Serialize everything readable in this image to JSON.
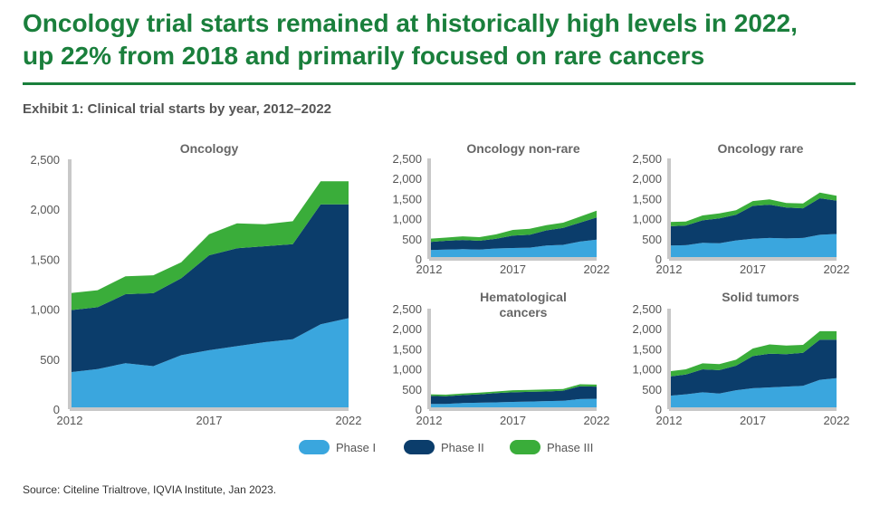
{
  "title_line1": "Oncology trial starts remained at historically high levels in 2022,",
  "title_line2": "up 22% from 2018 and primarily focused on rare cancers",
  "exhibit": "Exhibit 1: Clinical trial starts by year, 2012–2022",
  "source": "Source: Citeline Trialtrove, IQVIA Institute, Jan 2023.",
  "colors": {
    "phase1": "#3aa6de",
    "phase2": "#0b3d6b",
    "phase3": "#3aad3a",
    "title": "#1a7f3c"
  },
  "legend": [
    "Phase I",
    "Phase II",
    "Phase III"
  ],
  "chart_data": [
    {
      "type": "area",
      "stacked": true,
      "title": "Oncology",
      "x": [
        2012,
        2013,
        2014,
        2015,
        2016,
        2017,
        2018,
        2019,
        2020,
        2021,
        2022
      ],
      "x_ticks": [
        "2012",
        "2017",
        "2022"
      ],
      "y_ticks": [
        "0",
        "500",
        "1,000",
        "1,500",
        "2,000",
        "2,500"
      ],
      "ylim": [
        0,
        2500
      ],
      "series": [
        {
          "name": "Phase I",
          "values": [
            370,
            400,
            460,
            430,
            540,
            590,
            630,
            670,
            700,
            850,
            910
          ]
        },
        {
          "name": "Phase II",
          "values": [
            620,
            620,
            690,
            730,
            770,
            950,
            980,
            960,
            950,
            1200,
            1140
          ]
        },
        {
          "name": "Phase III",
          "values": [
            170,
            170,
            180,
            180,
            160,
            210,
            250,
            220,
            230,
            230,
            230
          ]
        }
      ]
    },
    {
      "type": "area",
      "stacked": true,
      "title": "Oncology non-rare",
      "x": [
        2012,
        2013,
        2014,
        2015,
        2016,
        2017,
        2018,
        2019,
        2020,
        2021,
        2022
      ],
      "x_ticks": [
        "2012",
        "2017",
        "2022"
      ],
      "y_ticks": [
        "0",
        "500",
        "1,000",
        "1,500",
        "2,000",
        "2,500"
      ],
      "ylim": [
        0,
        2500
      ],
      "series": [
        {
          "name": "Phase I",
          "values": [
            220,
            230,
            240,
            230,
            260,
            270,
            280,
            330,
            350,
            430,
            480
          ]
        },
        {
          "name": "Phase II",
          "values": [
            200,
            220,
            230,
            220,
            240,
            310,
            320,
            380,
            420,
            470,
            550
          ]
        },
        {
          "name": "Phase III",
          "values": [
            80,
            80,
            90,
            90,
            110,
            140,
            150,
            130,
            130,
            150,
            170
          ]
        }
      ]
    },
    {
      "type": "area",
      "stacked": true,
      "title": "Oncology rare",
      "x": [
        2012,
        2013,
        2014,
        2015,
        2016,
        2017,
        2018,
        2019,
        2020,
        2021,
        2022
      ],
      "x_ticks": [
        "2012",
        "2017",
        "2022"
      ],
      "y_ticks": [
        "0",
        "500",
        "1,000",
        "1,500",
        "2,000",
        "2,500"
      ],
      "ylim": [
        0,
        2500
      ],
      "series": [
        {
          "name": "Phase I",
          "values": [
            330,
            340,
            400,
            390,
            460,
            500,
            520,
            510,
            520,
            600,
            620
          ]
        },
        {
          "name": "Phase II",
          "values": [
            480,
            490,
            560,
            620,
            640,
            820,
            830,
            770,
            740,
            910,
            830
          ]
        },
        {
          "name": "Phase III",
          "values": [
            110,
            100,
            120,
            120,
            110,
            120,
            130,
            110,
            120,
            140,
            120
          ]
        }
      ]
    },
    {
      "type": "area",
      "stacked": true,
      "title": "Hematological cancers",
      "title_lines": [
        "Hematological",
        "cancers"
      ],
      "x": [
        2012,
        2013,
        2014,
        2015,
        2016,
        2017,
        2018,
        2019,
        2020,
        2021,
        2022
      ],
      "x_ticks": [
        "2012",
        "2017",
        "2022"
      ],
      "y_ticks": [
        "0",
        "500",
        "1,000",
        "1,500",
        "2,000",
        "2,500"
      ],
      "ylim": [
        0,
        2500
      ],
      "series": [
        {
          "name": "Phase I",
          "values": [
            130,
            130,
            150,
            160,
            170,
            180,
            190,
            200,
            210,
            250,
            260
          ]
        },
        {
          "name": "Phase II",
          "values": [
            200,
            190,
            200,
            210,
            230,
            240,
            240,
            240,
            250,
            320,
            300
          ]
        },
        {
          "name": "Phase III",
          "values": [
            40,
            40,
            40,
            40,
            40,
            50,
            50,
            50,
            40,
            50,
            50
          ]
        }
      ]
    },
    {
      "type": "area",
      "stacked": true,
      "title": "Solid tumors",
      "x": [
        2012,
        2013,
        2014,
        2015,
        2016,
        2017,
        2018,
        2019,
        2020,
        2021,
        2022
      ],
      "x_ticks": [
        "2012",
        "2017",
        "2022"
      ],
      "y_ticks": [
        "0",
        "500",
        "1,000",
        "1,500",
        "2,000",
        "2,500"
      ],
      "ylim": [
        0,
        2500
      ],
      "series": [
        {
          "name": "Phase I",
          "values": [
            330,
            370,
            420,
            390,
            470,
            520,
            540,
            560,
            580,
            730,
            770
          ]
        },
        {
          "name": "Phase II",
          "values": [
            480,
            490,
            570,
            580,
            610,
            800,
            840,
            810,
            820,
            1000,
            960
          ]
        },
        {
          "name": "Phase III",
          "values": [
            130,
            130,
            150,
            150,
            150,
            190,
            230,
            210,
            200,
            210,
            210
          ]
        }
      ]
    }
  ]
}
